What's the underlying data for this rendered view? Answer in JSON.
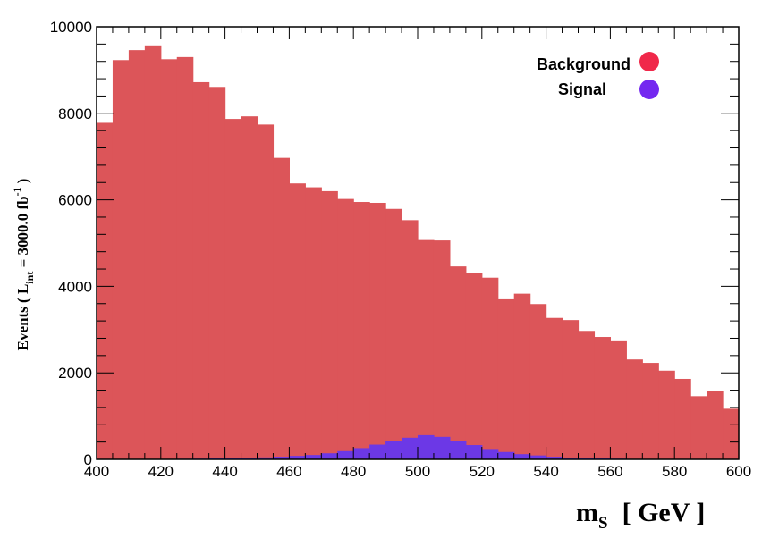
{
  "chart_data": {
    "type": "bar",
    "subtype": "stacked-histogram",
    "xlim": [
      400,
      600
    ],
    "ylim": [
      0,
      10000
    ],
    "bin_width": 5,
    "bin_edges_start": 400,
    "x_ticks": [
      "400",
      "420",
      "440",
      "460",
      "480",
      "500",
      "520",
      "540",
      "560",
      "580",
      "600"
    ],
    "y_ticks": [
      "0",
      "2000",
      "4000",
      "6000",
      "8000",
      "10000"
    ],
    "xlabel": {
      "main": "m",
      "sub": "S",
      "unit": "[ GeV ]"
    },
    "ylabel": {
      "pre": "Events  ( L",
      "sub": "int",
      "mid": " = 3000.0 fb",
      "sup": "-1",
      "post": ")"
    },
    "legend_placement": "top-right",
    "series": [
      {
        "name": "Background",
        "color": "#dc5559",
        "marker_color": "#f0284a",
        "values": [
          7780,
          9230,
          9460,
          9570,
          9250,
          9300,
          8720,
          8610,
          7870,
          7930,
          7740,
          6970,
          6380,
          6290,
          6200,
          6020,
          5950,
          5930,
          5790,
          5530,
          5090,
          5060,
          4460,
          4300,
          4200,
          3700,
          3830,
          3590,
          3270,
          3220,
          2970,
          2830,
          2730,
          2310,
          2230,
          2050,
          1860,
          1460,
          1590,
          1170
        ]
      },
      {
        "name": "Signal",
        "color": "#6c38e6",
        "marker_color": "#7428f0",
        "values": [
          5,
          5,
          5,
          8,
          10,
          12,
          15,
          20,
          25,
          35,
          45,
          60,
          80,
          100,
          140,
          190,
          260,
          340,
          420,
          500,
          560,
          520,
          430,
          330,
          240,
          170,
          120,
          90,
          60,
          40,
          28,
          20,
          15,
          10,
          8,
          6,
          5,
          4,
          3,
          3
        ]
      }
    ]
  }
}
